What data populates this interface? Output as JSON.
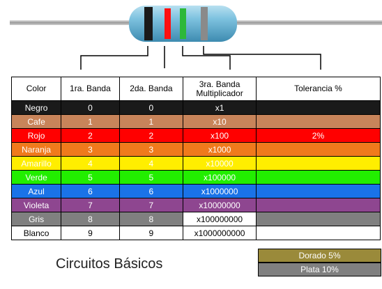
{
  "header": {
    "color": "Color",
    "band1": "1ra. Banda",
    "band2": "2da. Banda",
    "mult_line1": "3ra. Banda",
    "mult_line2": "Multiplicador",
    "tolerance": "Tolerancia %"
  },
  "rows": [
    {
      "name": "Negro",
      "d1": "0",
      "d2": "0",
      "mult": "x1",
      "tol": "",
      "bg": "#1a1a1a",
      "fg": "#ffffff",
      "mult_bg": "#1a1a1a",
      "mult_fg": "#ffffff"
    },
    {
      "name": "Cafe",
      "d1": "1",
      "d2": "1",
      "mult": "x10",
      "tol": "",
      "bg": "#c8845a",
      "fg": "#ffffff",
      "mult_bg": "#c8845a",
      "mult_fg": "#ffffff"
    },
    {
      "name": "Rojo",
      "d1": "2",
      "d2": "2",
      "mult": "x100",
      "tol": "2%",
      "bg": "#ff0000",
      "fg": "#ffffff",
      "mult_bg": "#ff0000",
      "mult_fg": "#ffffff"
    },
    {
      "name": "Naranja",
      "d1": "3",
      "d2": "3",
      "mult": "x1000",
      "tol": "",
      "bg": "#f07a1c",
      "fg": "#ffffff",
      "mult_bg": "#f07a1c",
      "mult_fg": "#ffffff"
    },
    {
      "name": "Amarillo",
      "d1": "4",
      "d2": "4",
      "mult": "x10000",
      "tol": "",
      "bg": "#ffee00",
      "fg": "#ffffff",
      "mult_bg": "#ffee00",
      "mult_fg": "#ffffff"
    },
    {
      "name": "Verde",
      "d1": "5",
      "d2": "5",
      "mult": "x100000",
      "tol": "",
      "bg": "#22ee00",
      "fg": "#ffffff",
      "mult_bg": "#22ee00",
      "mult_fg": "#ffffff"
    },
    {
      "name": "Azul",
      "d1": "6",
      "d2": "6",
      "mult": "x1000000",
      "tol": "",
      "bg": "#1a73e8",
      "fg": "#ffffff",
      "mult_bg": "#1a73e8",
      "mult_fg": "#ffffff"
    },
    {
      "name": "Violeta",
      "d1": "7",
      "d2": "7",
      "mult": "x10000000",
      "tol": "",
      "bg": "#8e4690",
      "fg": "#ffffff",
      "mult_bg": "#8e4690",
      "mult_fg": "#ffffff"
    },
    {
      "name": "Gris",
      "d1": "8",
      "d2": "8",
      "mult": "x100000000",
      "tol": "",
      "bg": "#808080",
      "fg": "#ffffff",
      "mult_bg": "#ffffff",
      "mult_fg": "#000000"
    },
    {
      "name": "Blanco",
      "d1": "9",
      "d2": "9",
      "mult": "x1000000000",
      "tol": "",
      "bg": "#ffffff",
      "fg": "#000000",
      "mult_bg": "#ffffff",
      "mult_fg": "#000000"
    }
  ],
  "tolerance_boxes": {
    "gold": "Dorado  5%",
    "silver": "Plata  10%",
    "gold_color": "#9a8a3a",
    "silver_color": "#808080"
  },
  "footer": {
    "title": "Circuitos Básicos"
  },
  "resistor": {
    "band_colors": [
      "#1a1a1a",
      "#ff1010",
      "#2db83a",
      "#8a8a8a"
    ],
    "icon": "resistor-icon"
  }
}
